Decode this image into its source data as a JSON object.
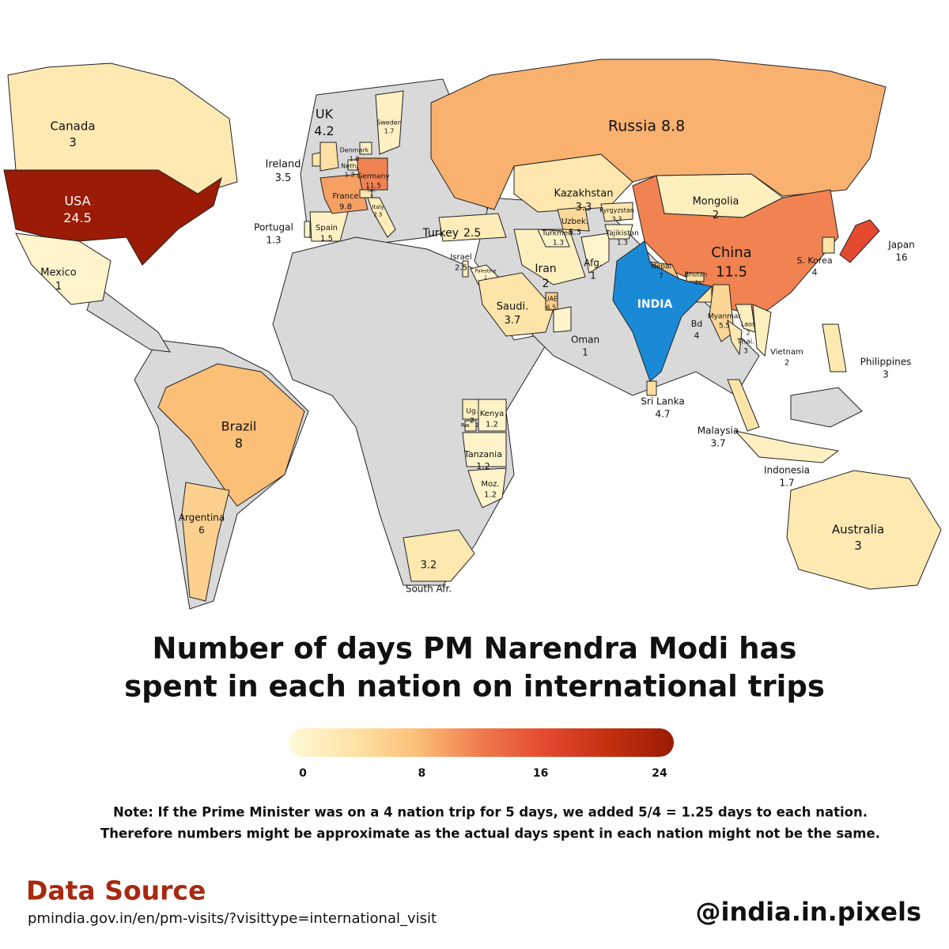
{
  "chart_data": {
    "type": "choropleth",
    "title": [
      "Number of days PM Narendra Modi has",
      "spent in each nation on international trips"
    ],
    "home": {
      "name": "INDIA",
      "color": "#1a8ad6"
    },
    "land_color": "#d9d9d9",
    "regions": [
      {
        "name": "Canada",
        "value": 3
      },
      {
        "name": "USA",
        "value": 24.5
      },
      {
        "name": "Mexico",
        "value": 1
      },
      {
        "name": "Brazil",
        "value": 8
      },
      {
        "name": "Argentina",
        "value": 6
      },
      {
        "name": "UK",
        "value": 4.2
      },
      {
        "name": "Ireland",
        "value": 3.5
      },
      {
        "name": "Portugal",
        "value": 1.3
      },
      {
        "name": "Spain",
        "value": 1.5
      },
      {
        "name": "France",
        "value": 9.8
      },
      {
        "name": "Germany",
        "value": 11.5
      },
      {
        "name": "Denmark",
        "value": 1.3
      },
      {
        "name": "Neth.",
        "value": 1.3
      },
      {
        "name": "Sweden",
        "value": 1.7
      },
      {
        "name": "Swi.",
        "value": 3
      },
      {
        "name": "Italy",
        "value": 2.5
      },
      {
        "name": "Turkey",
        "value": 2.5
      },
      {
        "name": "Israel",
        "value": 2.5
      },
      {
        "name": "Palestine",
        "value": 1
      },
      {
        "name": "Saudi.",
        "value": 3.7
      },
      {
        "name": "UAE",
        "value": 6.5
      },
      {
        "name": "Oman",
        "value": 1
      },
      {
        "name": "Iran",
        "value": 2
      },
      {
        "name": "Afg.",
        "value": 1
      },
      {
        "name": "Kazakhstan",
        "value": 3.3
      },
      {
        "name": "Uzbek.",
        "value": 5.3
      },
      {
        "name": "Turkmen.",
        "value": 1.3
      },
      {
        "name": "Kyrgyzstan",
        "value": 3.3
      },
      {
        "name": "Tajikistan",
        "value": 1.3
      },
      {
        "name": "Mongolia",
        "value": 2
      },
      {
        "name": "Russia",
        "value": 8.8
      },
      {
        "name": "China",
        "value": 11.5
      },
      {
        "name": "Japan",
        "value": 16
      },
      {
        "name": "S. Korea",
        "value": 4
      },
      {
        "name": "Nepal",
        "value": 7
      },
      {
        "name": "Bhutan",
        "value": 4
      },
      {
        "name": "Bd",
        "value": 4
      },
      {
        "name": "Myanmar",
        "value": 5.5
      },
      {
        "name": "Laos",
        "value": 2
      },
      {
        "name": "Thai.",
        "value": 3
      },
      {
        "name": "Vietnam",
        "value": 2
      },
      {
        "name": "Philippines",
        "value": 3
      },
      {
        "name": "Sri Lanka",
        "value": 4.7
      },
      {
        "name": "Malaysia",
        "value": 3.7
      },
      {
        "name": "Indonesia",
        "value": 1.7
      },
      {
        "name": "Australia",
        "value": 3
      },
      {
        "name": "Ug.",
        "value": 2
      },
      {
        "name": "Kenya",
        "value": 1.2
      },
      {
        "name": "Rw.",
        "value": 2
      },
      {
        "name": "Tanzania",
        "value": 1.2
      },
      {
        "name": "Moz.",
        "value": 1.2
      },
      {
        "name": "South Afr.",
        "value": 3.2
      }
    ],
    "colorbar": {
      "lim": [
        0,
        24
      ],
      "ticks": [
        0,
        8,
        16,
        24
      ],
      "colors": [
        "#fffad8",
        "#fde3a6",
        "#fbbf78",
        "#f07a4c",
        "#e44a30",
        "#c2300f",
        "#9b1b06"
      ]
    }
  },
  "note": [
    "Note: If the Prime Minister was on a 4 nation trip for 5 days, we added 5/4 = 1.25 days to each nation.",
    "Therefore numbers might be approximate  as the actual days spent in each nation might not be the same."
  ],
  "source": {
    "heading": "Data Source",
    "url": "pmindia.gov.in/en/pm-visits/?visittype=international_visit"
  },
  "handle": "@india.in.pixels"
}
